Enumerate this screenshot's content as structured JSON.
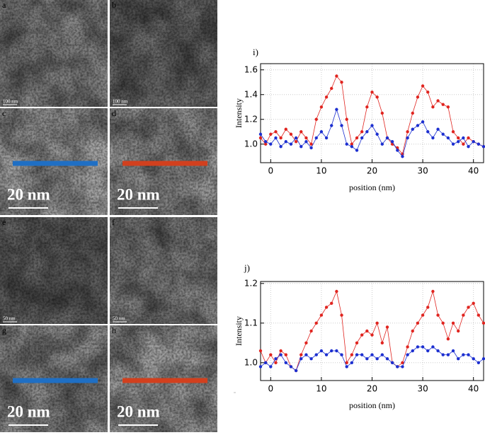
{
  "panels": [
    {
      "label": "a",
      "scale_label": "100 nm"
    },
    {
      "label": "b",
      "scale_label": "100 nm"
    },
    {
      "label": "c",
      "scale_label": "20 nm"
    },
    {
      "label": "d",
      "scale_label": "20 nm"
    },
    {
      "label": "e",
      "scale_label": "50 nm"
    },
    {
      "label": "f",
      "scale_label": "50 nm"
    },
    {
      "label": "g",
      "scale_label": "20 nm"
    },
    {
      "label": "h",
      "scale_label": "20 nm"
    }
  ],
  "chart_data": [
    {
      "type": "line",
      "title": "i)",
      "x_label": "position (nm)",
      "y_label": "Intensity",
      "x": [
        -2,
        -1,
        0,
        1,
        2,
        3,
        4,
        5,
        6,
        7,
        8,
        9,
        10,
        11,
        12,
        13,
        14,
        15,
        16,
        17,
        18,
        19,
        20,
        21,
        22,
        23,
        24,
        25,
        26,
        27,
        28,
        29,
        30,
        31,
        32,
        33,
        34,
        35,
        36,
        37,
        38,
        39,
        40,
        41,
        42
      ],
      "series": [
        {
          "color": "#e0241f",
          "values": [
            1.05,
            1.0,
            1.08,
            1.1,
            1.05,
            1.12,
            1.08,
            1.02,
            1.1,
            1.05,
            1.0,
            1.2,
            1.3,
            1.38,
            1.45,
            1.55,
            1.5,
            1.2,
            1.0,
            1.05,
            1.1,
            1.3,
            1.42,
            1.38,
            1.25,
            1.05,
            1.0,
            0.97,
            0.92,
            1.1,
            1.25,
            1.38,
            1.47,
            1.42,
            1.3,
            1.35,
            1.32,
            1.3,
            1.1,
            1.05,
            1.0,
            1.05,
            1.02,
            1.0,
            0.98
          ]
        },
        {
          "color": "#1c2fd0",
          "values": [
            1.08,
            1.02,
            1.0,
            1.05,
            0.98,
            1.02,
            1.0,
            1.05,
            0.98,
            1.02,
            0.97,
            1.05,
            1.1,
            1.05,
            1.15,
            1.28,
            1.15,
            1.0,
            0.98,
            0.95,
            1.05,
            1.1,
            1.15,
            1.08,
            1.0,
            1.05,
            1.02,
            0.95,
            0.9,
            1.05,
            1.12,
            1.15,
            1.18,
            1.1,
            1.05,
            1.12,
            1.08,
            1.05,
            1.0,
            1.02,
            1.05,
            0.98,
            1.02,
            1.0,
            0.98
          ]
        }
      ],
      "xlim": [
        -2,
        42
      ],
      "xticks": [
        0,
        10,
        20,
        30,
        40
      ],
      "ylim": [
        0.85,
        1.65
      ],
      "yticks": [
        {
          "value": 1.0,
          "label": "1.0"
        },
        1.2,
        1.4,
        1.6
      ],
      "grid": true
    },
    {
      "type": "line",
      "title": "j)",
      "x_label": "position (nm)",
      "y_label": "Intensity",
      "x": [
        -2,
        -1,
        0,
        1,
        2,
        3,
        4,
        5,
        6,
        7,
        8,
        9,
        10,
        11,
        12,
        13,
        14,
        15,
        16,
        17,
        18,
        19,
        20,
        21,
        22,
        23,
        24,
        25,
        26,
        27,
        28,
        29,
        30,
        31,
        32,
        33,
        34,
        35,
        36,
        37,
        38,
        39,
        40,
        41,
        42
      ],
      "series": [
        {
          "color": "#e0241f",
          "values": [
            1.03,
            1.0,
            1.02,
            1.0,
            1.03,
            1.02,
            0.99,
            0.98,
            1.02,
            1.05,
            1.08,
            1.1,
            1.12,
            1.14,
            1.15,
            1.18,
            1.12,
            1.0,
            1.02,
            1.05,
            1.07,
            1.08,
            1.07,
            1.1,
            1.05,
            1.09,
            1.0,
            0.99,
            1.0,
            1.04,
            1.08,
            1.1,
            1.12,
            1.14,
            1.18,
            1.12,
            1.1,
            1.06,
            1.1,
            1.08,
            1.12,
            1.14,
            1.15,
            1.12,
            1.1
          ]
        },
        {
          "color": "#1c2fd0",
          "values": [
            0.99,
            1.0,
            0.99,
            1.01,
            1.02,
            1.0,
            0.99,
            0.98,
            1.01,
            1.02,
            1.01,
            1.02,
            1.03,
            1.02,
            1.03,
            1.03,
            1.02,
            0.99,
            1.0,
            1.02,
            1.02,
            1.01,
            1.02,
            1.01,
            1.02,
            1.01,
            1.0,
            0.99,
            0.99,
            1.02,
            1.03,
            1.04,
            1.04,
            1.03,
            1.04,
            1.03,
            1.02,
            1.02,
            1.03,
            1.01,
            1.02,
            1.02,
            1.01,
            1.0,
            1.01
          ]
        }
      ],
      "xlim": [
        -2,
        42
      ],
      "xticks": [
        0,
        10,
        20,
        30,
        40
      ],
      "ylim": [
        0.955,
        1.205
      ],
      "yticks": [
        {
          "value": 1.0,
          "label": "1.0"
        },
        1.1,
        1.2
      ],
      "grid": true
    }
  ]
}
